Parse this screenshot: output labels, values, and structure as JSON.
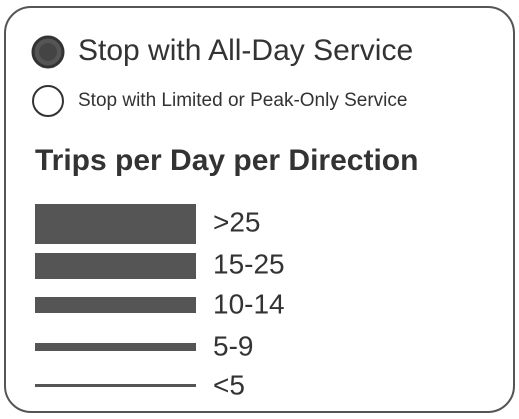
{
  "legend": {
    "stops": [
      {
        "label": "Stop with All-Day Service"
      },
      {
        "label": "Stop with Limited or Peak-Only Service"
      }
    ],
    "frequency_title": "Trips per Day per Direction",
    "frequency_items": [
      {
        "label": ">25"
      },
      {
        "label": "15-25"
      },
      {
        "label": "10-14"
      },
      {
        "label": "5-9"
      },
      {
        "label": "<5"
      }
    ]
  }
}
